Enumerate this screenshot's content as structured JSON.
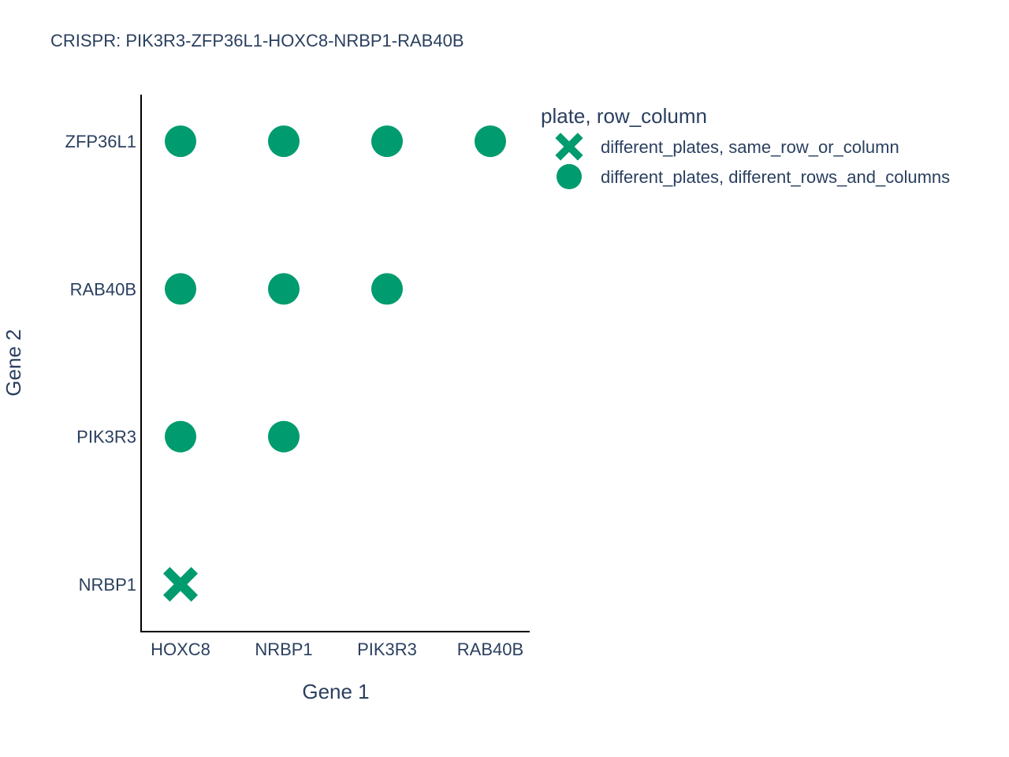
{
  "chart_data": {
    "type": "scatter",
    "title": "CRISPR: PIK3R3-ZFP36L1-HOXC8-NRBP1-RAB40B",
    "xlabel": "Gene 1",
    "ylabel": "Gene 2",
    "x_categories": [
      "HOXC8",
      "NRBP1",
      "PIK3R3",
      "RAB40B"
    ],
    "y_categories": [
      "NRBP1",
      "PIK3R3",
      "RAB40B",
      "ZFP36L1"
    ],
    "grid": false,
    "legend": {
      "title": "plate, row_column",
      "placement": "top-right"
    },
    "marker_color": "#009b6e",
    "series": [
      {
        "name": "different_plates, same_row_or_column",
        "marker": "x",
        "points": [
          {
            "x": "HOXC8",
            "y": "NRBP1"
          }
        ]
      },
      {
        "name": "different_plates, different_rows_and_columns",
        "marker": "circle",
        "points": [
          {
            "x": "HOXC8",
            "y": "PIK3R3"
          },
          {
            "x": "NRBP1",
            "y": "PIK3R3"
          },
          {
            "x": "HOXC8",
            "y": "RAB40B"
          },
          {
            "x": "NRBP1",
            "y": "RAB40B"
          },
          {
            "x": "PIK3R3",
            "y": "RAB40B"
          },
          {
            "x": "HOXC8",
            "y": "ZFP36L1"
          },
          {
            "x": "NRBP1",
            "y": "ZFP36L1"
          },
          {
            "x": "PIK3R3",
            "y": "ZFP36L1"
          },
          {
            "x": "RAB40B",
            "y": "ZFP36L1"
          }
        ]
      }
    ]
  }
}
